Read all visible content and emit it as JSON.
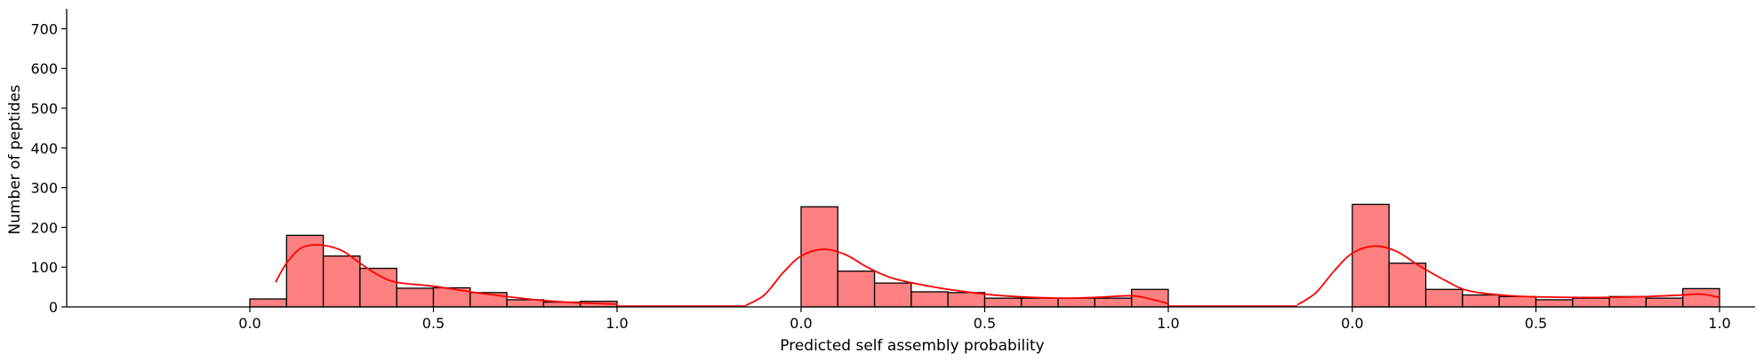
{
  "chart_data": {
    "type": "bar",
    "xlabel": "Predicted self assembly probability",
    "ylabel": "Number of peptides",
    "ylim": [
      0,
      750
    ],
    "yticks": [
      0,
      100,
      200,
      300,
      400,
      500,
      600,
      700
    ],
    "bar_color": "#ff8080",
    "edge_color": "#000000",
    "kde_color": "#ff0000",
    "grid": false,
    "panels": [
      {
        "xticks": [
          "0.0",
          "0.5",
          "1.0"
        ],
        "bin_edges": [
          0.0,
          0.1,
          0.2,
          0.3,
          0.4,
          0.5,
          0.6,
          0.7,
          0.8,
          0.9,
          1.0
        ],
        "counts": [
          20,
          180,
          128,
          97,
          47,
          48,
          36,
          18,
          12,
          14
        ],
        "kde": [
          [
            0.07,
            62
          ],
          [
            0.1,
            110
          ],
          [
            0.14,
            148
          ],
          [
            0.19,
            156
          ],
          [
            0.25,
            142
          ],
          [
            0.3,
            110
          ],
          [
            0.35,
            80
          ],
          [
            0.4,
            62
          ],
          [
            0.5,
            52
          ],
          [
            0.6,
            38
          ],
          [
            0.7,
            26
          ],
          [
            0.8,
            16
          ],
          [
            0.9,
            10
          ],
          [
            1.0,
            7
          ]
        ]
      },
      {
        "xticks": [
          "0.0",
          "0.5",
          "1.0"
        ],
        "bin_edges": [
          0.0,
          0.1,
          0.2,
          0.3,
          0.4,
          0.5,
          0.6,
          0.7,
          0.8,
          0.9,
          1.0
        ],
        "counts": [
          252,
          90,
          60,
          38,
          36,
          22,
          22,
          22,
          22,
          44
        ],
        "kde": [
          [
            -0.15,
            4
          ],
          [
            -0.1,
            30
          ],
          [
            -0.05,
            85
          ],
          [
            0.0,
            128
          ],
          [
            0.06,
            145
          ],
          [
            0.12,
            132
          ],
          [
            0.18,
            100
          ],
          [
            0.25,
            72
          ],
          [
            0.35,
            52
          ],
          [
            0.45,
            38
          ],
          [
            0.55,
            28
          ],
          [
            0.7,
            22
          ],
          [
            0.8,
            24
          ],
          [
            0.9,
            28
          ],
          [
            0.95,
            20
          ],
          [
            1.0,
            8
          ]
        ]
      },
      {
        "xticks": [
          "0.0",
          "0.5",
          "1.0"
        ],
        "bin_edges": [
          0.0,
          0.1,
          0.2,
          0.3,
          0.4,
          0.5,
          0.6,
          0.7,
          0.8,
          0.9,
          1.0
        ],
        "counts": [
          258,
          110,
          44,
          30,
          26,
          18,
          22,
          26,
          22,
          46
        ],
        "kde": [
          [
            -0.15,
            5
          ],
          [
            -0.1,
            35
          ],
          [
            -0.05,
            90
          ],
          [
            0.0,
            135
          ],
          [
            0.06,
            153
          ],
          [
            0.12,
            140
          ],
          [
            0.18,
            105
          ],
          [
            0.25,
            68
          ],
          [
            0.32,
            40
          ],
          [
            0.45,
            27
          ],
          [
            0.6,
            24
          ],
          [
            0.7,
            24
          ],
          [
            0.8,
            26
          ],
          [
            0.9,
            30
          ],
          [
            0.95,
            32
          ],
          [
            1.0,
            24
          ]
        ]
      }
    ]
  }
}
